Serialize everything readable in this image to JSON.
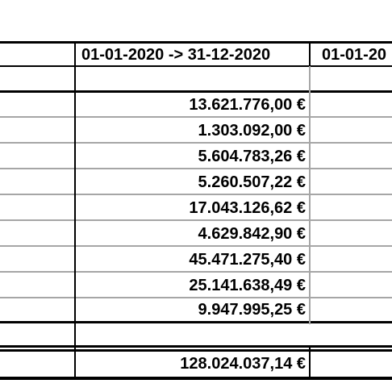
{
  "table": {
    "header": {
      "col1": "01-01-2020 -> 31-12-2020",
      "col2_partial": "01-01-20"
    },
    "amounts": [
      "13.621.776,00 €",
      "1.303.092,00 €",
      "5.604.783,26 €",
      "5.260.507,22 €",
      "17.043.126,62 €",
      "4.629.842,90 €",
      "45.471.275,40 €",
      "25.141.638,49 €",
      "9.947.995,25 €"
    ],
    "total": "128.024.037,14 €"
  }
}
